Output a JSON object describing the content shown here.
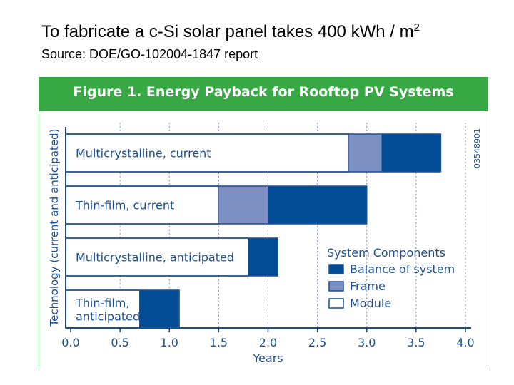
{
  "slide": {
    "title": "To fabricate a c-Si solar panel takes  400 kWh / m",
    "title_superscript": "2",
    "subtitle": "Source: DOE/GO-102004-1847 report"
  },
  "figure": {
    "header_color": "#38a845",
    "side_code": "03548901"
  },
  "chart_data": {
    "type": "bar",
    "orientation": "horizontal",
    "stacked": true,
    "title": "Figure 1. Energy Payback for Rooftop PV Systems",
    "xlabel": "Years",
    "ylabel": "Technology (current and anticipated)",
    "xlim": [
      0,
      4
    ],
    "xticks": [
      "0.0",
      "0.5",
      "1.0",
      "1.5",
      "2.0",
      "2.5",
      "3.0",
      "3.5",
      "4.0"
    ],
    "categories": [
      "Multicrystalline, current",
      "Thin-film, current",
      "Multicrystalline, anticipated",
      "Thin-film, anticipated"
    ],
    "category_lines": [
      [
        "Multicrystalline, current"
      ],
      [
        "Thin-film, current"
      ],
      [
        "Multicrystalline, anticipated"
      ],
      [
        "Thin-film,",
        "anticipated"
      ]
    ],
    "series": [
      {
        "name": "Module",
        "color": "#ffffff",
        "values": [
          2.82,
          1.5,
          1.8,
          0.7
        ]
      },
      {
        "name": "Frame",
        "color": "#7b8fc2",
        "values": [
          0.33,
          0.5,
          0,
          0
        ]
      },
      {
        "name": "Balance of system",
        "color": "#034d97",
        "values": [
          0.6,
          1.0,
          0.3,
          0.4
        ]
      }
    ],
    "legend": {
      "title": "System Components",
      "position": "lower-right",
      "order": [
        "Balance of system",
        "Frame",
        "Module"
      ]
    }
  }
}
